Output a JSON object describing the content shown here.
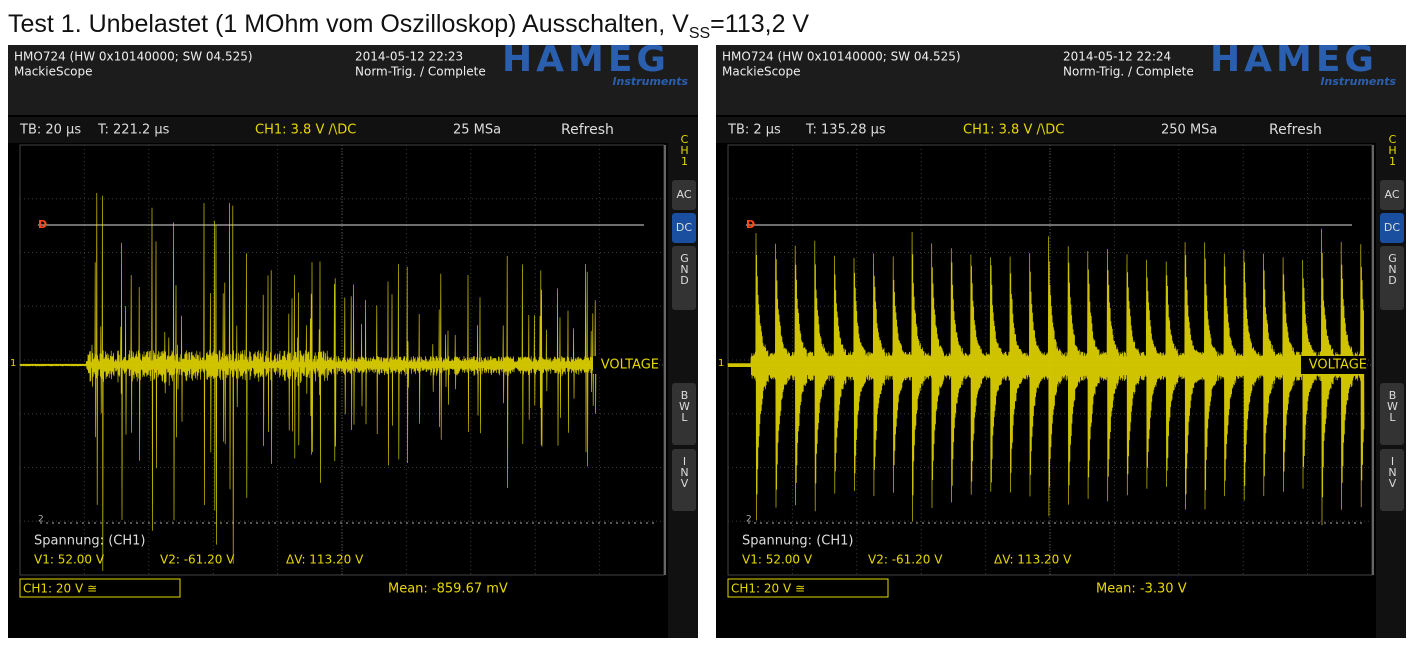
{
  "title": {
    "prefix": "Test 1. Unbelastet (1 MOhm vom Oszilloskop) Ausschalten, V",
    "subscript": "SS",
    "suffix": "=113,2 V"
  },
  "scopes": [
    {
      "model": "HMO724 (HW 0x10140000; SW 04.525)",
      "name": "MackieScope",
      "date": "2014-05-12 22:23",
      "trigger": "Norm-Trig. / Complete",
      "brand": "HAMEG",
      "brand_sub": "Instruments",
      "timebase": "TB: 20 µs",
      "time": "T: 221.2 µs",
      "channel": "CH1: 3.8 V /\\DC",
      "rate": "25 MSa",
      "mode": "Refresh",
      "side": {
        "channel": "CH1",
        "ac": "AC",
        "dc": "DC",
        "gnd": "GND",
        "bwl": "BWL",
        "inv": "INV"
      },
      "trace_label": "VOLTAGE",
      "marker_1": "1",
      "marker_2": "2",
      "marker_d": "D",
      "measure_title": "Spannung: (CH1)",
      "v1": "V1: 52.00 V",
      "v2": "V2: -61.20 V",
      "dv": "ΔV: 113.20 V",
      "scale": "CH1: 20 V ≅",
      "mean": "Mean: -859.67 mV"
    },
    {
      "model": "HMO724 (HW 0x10140000; SW 04.525)",
      "name": "MackieScope",
      "date": "2014-05-12 22:24",
      "trigger": "Norm-Trig. / Complete",
      "brand": "HAMEG",
      "brand_sub": "Instruments",
      "timebase": "TB: 2 µs",
      "time": "T: 135.28 µs",
      "channel": "CH1: 3.8 V /\\DC",
      "rate": "250 MSa",
      "mode": "Refresh",
      "side": {
        "channel": "CH1",
        "ac": "AC",
        "dc": "DC",
        "gnd": "GND",
        "bwl": "BWL",
        "inv": "INV"
      },
      "trace_label": "VOLTAGE",
      "marker_1": "1",
      "marker_2": "2",
      "marker_d": "D",
      "measure_title": "Spannung: (CH1)",
      "v1": "V1: 52.00 V",
      "v2": "V2: -61.20 V",
      "dv": "ΔV: 113.20 V",
      "scale": "CH1: 20 V ≅",
      "mean": "Mean: -3.30 V"
    }
  ]
}
